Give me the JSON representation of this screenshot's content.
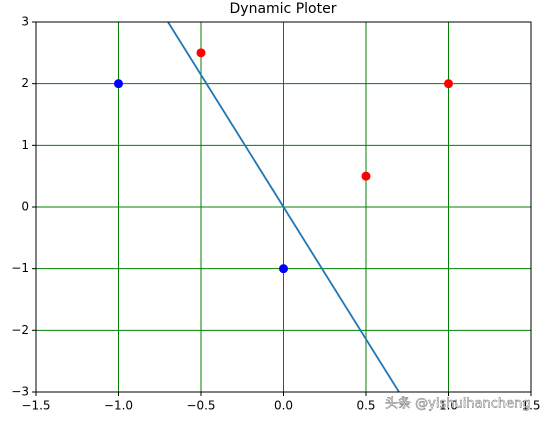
{
  "chart_data": {
    "type": "scatter",
    "title": "Dynamic Ploter",
    "xlim": [
      -1.5,
      1.5
    ],
    "xticks": [
      {
        "value": -1.5,
        "label": "−1.5"
      },
      {
        "value": -1.0,
        "label": "−1.0"
      },
      {
        "value": -0.5,
        "label": "−0.5"
      },
      {
        "value": 0,
        "label": "0.0"
      },
      0.5,
      {
        "value": 1,
        "label": "1.0"
      },
      1.5
    ],
    "ylim": [
      -3,
      3
    ],
    "yticks": [
      {
        "value": -3,
        "label": "−3"
      },
      {
        "value": -2,
        "label": "−2"
      },
      {
        "value": -1,
        "label": "−1"
      },
      0,
      1,
      2,
      3
    ],
    "grid": true,
    "grid_color": "#008000",
    "series": [
      {
        "color": "#0000ff",
        "x": [
          -1,
          0
        ],
        "y": [
          2,
          -1
        ]
      },
      {
        "color": "#ff0000",
        "x": [
          -0.5,
          0.5,
          1
        ],
        "y": [
          2.5,
          0.5,
          2
        ]
      }
    ],
    "lines": [
      {
        "color": "#1f77b4",
        "x": [
          -0.7,
          0.7
        ],
        "y": [
          3,
          -3
        ]
      }
    ],
    "watermark": "头条 @yishuihancheng"
  }
}
